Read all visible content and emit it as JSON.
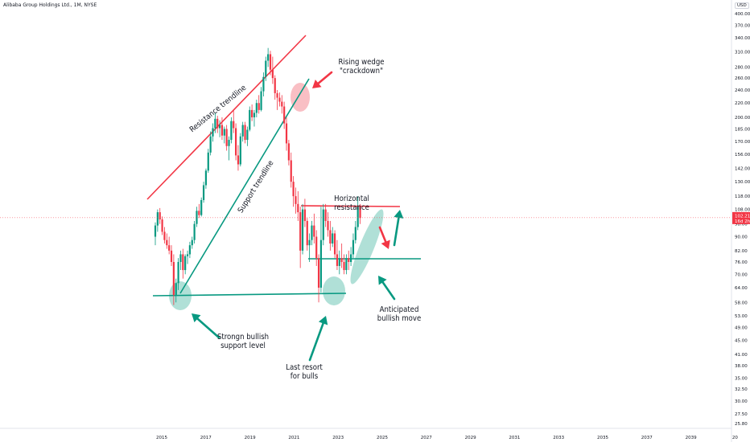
{
  "header": {
    "title": "Alibaba Group Holdings Ltd., 1M, NYSE",
    "currency": "USD"
  },
  "chart_data": {
    "type": "candlestick",
    "interval": "1M",
    "scale": "log",
    "y_ticks": [
      25.8,
      27.5,
      30.0,
      32.5,
      35.0,
      38.0,
      41.0,
      45.0,
      49.0,
      53.0,
      58.0,
      64.0,
      70.0,
      76.0,
      82.0,
      90.0,
      98.0,
      108.0,
      118.0,
      130.0,
      142.0,
      156.0,
      170.0,
      185.0,
      200.0,
      220.0,
      240.0,
      260.0,
      280.0,
      310.0,
      340.0,
      370.0,
      400.0
    ],
    "x_ticks": [
      "2015",
      "2017",
      "2019",
      "2021",
      "2023",
      "2025",
      "2027",
      "2029",
      "2031",
      "2033",
      "2035",
      "2037",
      "2039",
      "20"
    ],
    "last_price": {
      "value": "102.21",
      "sub": "16d 2h"
    },
    "candles": [
      {
        "o": 90,
        "h": 99,
        "l": 85,
        "c": 97
      },
      {
        "o": 97,
        "h": 108,
        "l": 93,
        "c": 106
      },
      {
        "o": 106,
        "h": 109,
        "l": 98,
        "c": 101
      },
      {
        "o": 101,
        "h": 103,
        "l": 91,
        "c": 93
      },
      {
        "o": 93,
        "h": 96,
        "l": 86,
        "c": 88
      },
      {
        "o": 88,
        "h": 92,
        "l": 83,
        "c": 85
      },
      {
        "o": 85,
        "h": 90,
        "l": 80,
        "c": 82
      },
      {
        "o": 82,
        "h": 85,
        "l": 74,
        "c": 76
      },
      {
        "o": 76,
        "h": 80,
        "l": 57,
        "c": 61
      },
      {
        "o": 61,
        "h": 68,
        "l": 58,
        "c": 66
      },
      {
        "o": 66,
        "h": 78,
        "l": 63,
        "c": 76
      },
      {
        "o": 76,
        "h": 82,
        "l": 72,
        "c": 80
      },
      {
        "o": 80,
        "h": 83,
        "l": 68,
        "c": 72
      },
      {
        "o": 72,
        "h": 80,
        "l": 70,
        "c": 79
      },
      {
        "o": 79,
        "h": 82,
        "l": 75,
        "c": 80
      },
      {
        "o": 80,
        "h": 87,
        "l": 78,
        "c": 85
      },
      {
        "o": 85,
        "h": 90,
        "l": 83,
        "c": 88
      },
      {
        "o": 88,
        "h": 100,
        "l": 86,
        "c": 98
      },
      {
        "o": 98,
        "h": 110,
        "l": 96,
        "c": 107
      },
      {
        "o": 107,
        "h": 112,
        "l": 102,
        "c": 104
      },
      {
        "o": 104,
        "h": 117,
        "l": 103,
        "c": 115
      },
      {
        "o": 115,
        "h": 130,
        "l": 113,
        "c": 127
      },
      {
        "o": 127,
        "h": 142,
        "l": 124,
        "c": 140
      },
      {
        "o": 140,
        "h": 162,
        "l": 138,
        "c": 158
      },
      {
        "o": 158,
        "h": 182,
        "l": 155,
        "c": 176
      },
      {
        "o": 176,
        "h": 192,
        "l": 170,
        "c": 186
      },
      {
        "o": 186,
        "h": 206,
        "l": 180,
        "c": 198
      },
      {
        "o": 198,
        "h": 202,
        "l": 180,
        "c": 186
      },
      {
        "o": 186,
        "h": 196,
        "l": 175,
        "c": 190
      },
      {
        "o": 190,
        "h": 200,
        "l": 172,
        "c": 177
      },
      {
        "o": 177,
        "h": 188,
        "l": 168,
        "c": 185
      },
      {
        "o": 185,
        "h": 190,
        "l": 160,
        "c": 165
      },
      {
        "o": 165,
        "h": 176,
        "l": 150,
        "c": 172
      },
      {
        "o": 172,
        "h": 200,
        "l": 168,
        "c": 195
      },
      {
        "o": 195,
        "h": 210,
        "l": 180,
        "c": 186
      },
      {
        "o": 186,
        "h": 192,
        "l": 150,
        "c": 155
      },
      {
        "o": 155,
        "h": 166,
        "l": 140,
        "c": 146
      },
      {
        "o": 146,
        "h": 180,
        "l": 144,
        "c": 176
      },
      {
        "o": 176,
        "h": 194,
        "l": 170,
        "c": 190
      },
      {
        "o": 190,
        "h": 194,
        "l": 168,
        "c": 172
      },
      {
        "o": 172,
        "h": 188,
        "l": 165,
        "c": 184
      },
      {
        "o": 184,
        "h": 215,
        "l": 182,
        "c": 210
      },
      {
        "o": 210,
        "h": 218,
        "l": 195,
        "c": 200
      },
      {
        "o": 200,
        "h": 210,
        "l": 188,
        "c": 206
      },
      {
        "o": 206,
        "h": 225,
        "l": 200,
        "c": 220
      },
      {
        "o": 220,
        "h": 232,
        "l": 205,
        "c": 210
      },
      {
        "o": 210,
        "h": 245,
        "l": 208,
        "c": 238
      },
      {
        "o": 238,
        "h": 270,
        "l": 230,
        "c": 262
      },
      {
        "o": 262,
        "h": 300,
        "l": 255,
        "c": 292
      },
      {
        "o": 292,
        "h": 318,
        "l": 280,
        "c": 305
      },
      {
        "o": 305,
        "h": 312,
        "l": 265,
        "c": 275
      },
      {
        "o": 275,
        "h": 300,
        "l": 250,
        "c": 260
      },
      {
        "o": 260,
        "h": 265,
        "l": 225,
        "c": 235
      },
      {
        "o": 235,
        "h": 240,
        "l": 210,
        "c": 228
      },
      {
        "o": 228,
        "h": 236,
        "l": 215,
        "c": 222
      },
      {
        "o": 222,
        "h": 232,
        "l": 205,
        "c": 215
      },
      {
        "o": 215,
        "h": 222,
        "l": 185,
        "c": 192
      },
      {
        "o": 192,
        "h": 200,
        "l": 160,
        "c": 168
      },
      {
        "o": 168,
        "h": 172,
        "l": 145,
        "c": 150
      },
      {
        "o": 150,
        "h": 158,
        "l": 125,
        "c": 130
      },
      {
        "o": 130,
        "h": 135,
        "l": 110,
        "c": 118
      },
      {
        "o": 118,
        "h": 125,
        "l": 105,
        "c": 112
      },
      {
        "o": 112,
        "h": 122,
        "l": 100,
        "c": 106
      },
      {
        "o": 106,
        "h": 110,
        "l": 73,
        "c": 82
      },
      {
        "o": 82,
        "h": 112,
        "l": 80,
        "c": 108
      },
      {
        "o": 108,
        "h": 116,
        "l": 96,
        "c": 100
      },
      {
        "o": 100,
        "h": 102,
        "l": 82,
        "c": 85
      },
      {
        "o": 85,
        "h": 92,
        "l": 76,
        "c": 88
      },
      {
        "o": 88,
        "h": 100,
        "l": 85,
        "c": 97
      },
      {
        "o": 97,
        "h": 105,
        "l": 86,
        "c": 90
      },
      {
        "o": 90,
        "h": 94,
        "l": 74,
        "c": 78
      },
      {
        "o": 78,
        "h": 80,
        "l": 58,
        "c": 64
      },
      {
        "o": 64,
        "h": 110,
        "l": 62,
        "c": 88
      },
      {
        "o": 88,
        "h": 112,
        "l": 85,
        "c": 108
      },
      {
        "o": 108,
        "h": 112,
        "l": 96,
        "c": 100
      },
      {
        "o": 100,
        "h": 106,
        "l": 90,
        "c": 94
      },
      {
        "o": 94,
        "h": 100,
        "l": 82,
        "c": 86
      },
      {
        "o": 86,
        "h": 96,
        "l": 84,
        "c": 92
      },
      {
        "o": 92,
        "h": 94,
        "l": 78,
        "c": 80
      },
      {
        "o": 80,
        "h": 88,
        "l": 72,
        "c": 74
      },
      {
        "o": 74,
        "h": 82,
        "l": 70,
        "c": 78
      },
      {
        "o": 78,
        "h": 86,
        "l": 73,
        "c": 76
      },
      {
        "o": 76,
        "h": 80,
        "l": 70,
        "c": 72
      },
      {
        "o": 72,
        "h": 80,
        "l": 70,
        "c": 78
      },
      {
        "o": 78,
        "h": 82,
        "l": 72,
        "c": 76
      },
      {
        "o": 76,
        "h": 84,
        "l": 74,
        "c": 80
      },
      {
        "o": 80,
        "h": 92,
        "l": 78,
        "c": 88
      },
      {
        "o": 88,
        "h": 100,
        "l": 86,
        "c": 96
      },
      {
        "o": 96,
        "h": 118,
        "l": 94,
        "c": 110
      },
      {
        "o": 110,
        "h": 112,
        "l": 98,
        "c": 102
      }
    ]
  },
  "annotations": {
    "resistance_trendline": "Resistance trendline",
    "support_trendline": "Support trendline",
    "rising_wedge": [
      "Rising wedge",
      "\"crackdown\""
    ],
    "horizontal_resistance": "Horizontal resistance",
    "strong_support": [
      "Strongn bullish",
      "support level"
    ],
    "last_resort": [
      "Last resort",
      "for bulls"
    ],
    "anticipated_move": [
      "Anticipated",
      "bullish move"
    ]
  },
  "colors": {
    "up": "#089981",
    "down": "#f23645",
    "resistance": "#f23645",
    "support": "#089981",
    "highlight_red": "#f7a9b0",
    "highlight_green": "#8fd3c6"
  }
}
